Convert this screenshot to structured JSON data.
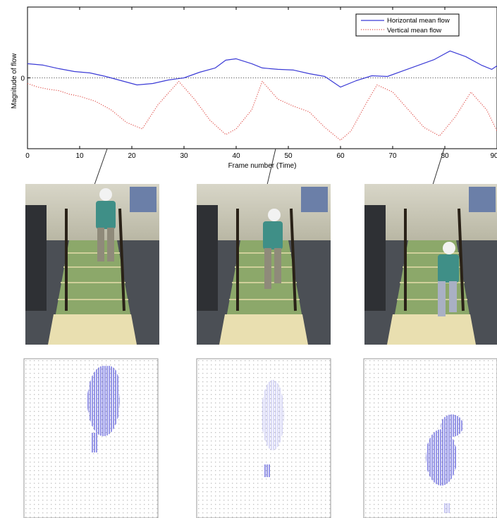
{
  "chart_data": {
    "type": "line",
    "xlabel": "Frame number (Time)",
    "ylabel": "Magnitude of flow",
    "xlim": [
      0,
      90
    ],
    "ylim": [
      -1,
      1
    ],
    "xticks": [
      0,
      10,
      20,
      30,
      40,
      50,
      60,
      70,
      80,
      90
    ],
    "yticks": [
      0
    ],
    "grid": false,
    "legend_position": "top-right",
    "zero_line": true,
    "series": [
      {
        "name": "Horizontal mean flow",
        "color": "#3b3bd6",
        "style": "solid",
        "x": [
          0,
          3,
          6,
          9,
          12,
          15,
          18,
          21,
          24,
          27,
          30,
          33,
          36,
          38,
          40,
          43,
          45,
          48,
          51,
          54,
          57,
          60,
          63,
          66,
          69,
          72,
          75,
          78,
          81,
          84,
          87,
          89,
          90
        ],
        "y": [
          0.2,
          0.18,
          0.13,
          0.09,
          0.07,
          0.02,
          -0.04,
          -0.1,
          -0.08,
          -0.03,
          0.0,
          0.08,
          0.14,
          0.25,
          0.27,
          0.2,
          0.14,
          0.12,
          0.11,
          0.06,
          0.02,
          -0.13,
          -0.04,
          0.03,
          0.02,
          0.1,
          0.18,
          0.26,
          0.38,
          0.3,
          0.18,
          0.12,
          0.17
        ]
      },
      {
        "name": "Vertical mean flow",
        "color": "#e0534e",
        "style": "dotted",
        "x": [
          0,
          2,
          4,
          6,
          8,
          10,
          13,
          16,
          19,
          22,
          25,
          29,
          32,
          35,
          38,
          40,
          43,
          45,
          48,
          51,
          54,
          57,
          60,
          62,
          65,
          67,
          70,
          73,
          76,
          79,
          82,
          85,
          88,
          90
        ],
        "y": [
          -0.08,
          -0.13,
          -0.16,
          -0.18,
          -0.23,
          -0.26,
          -0.33,
          -0.45,
          -0.63,
          -0.72,
          -0.38,
          -0.05,
          -0.3,
          -0.6,
          -0.8,
          -0.72,
          -0.45,
          -0.05,
          -0.3,
          -0.4,
          -0.48,
          -0.7,
          -0.88,
          -0.75,
          -0.35,
          -0.1,
          -0.2,
          -0.45,
          -0.7,
          -0.82,
          -0.55,
          -0.2,
          -0.45,
          -0.75
        ]
      }
    ]
  },
  "frames": [
    {
      "frame": 15,
      "name": "frame-1"
    },
    {
      "frame": 46,
      "name": "frame-2"
    },
    {
      "frame": 78,
      "name": "frame-3"
    }
  ]
}
